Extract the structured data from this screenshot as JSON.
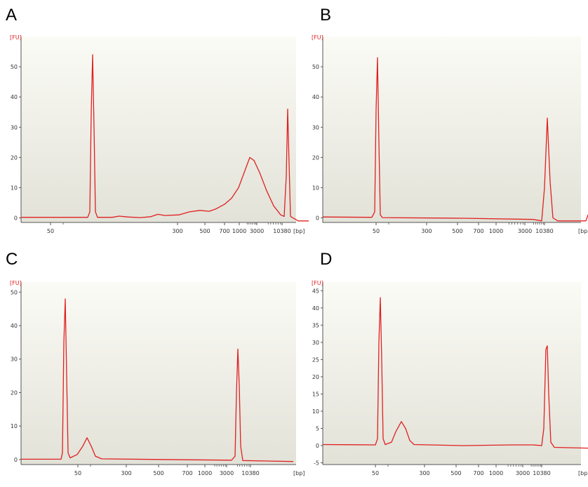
{
  "colors": {
    "trace": "#e02020",
    "plot_bg_top": "#fbfbf6",
    "plot_bg_bottom": "#e2e2d8",
    "axis": "#555555",
    "y_text": "#e02020",
    "x_text": "#333333"
  },
  "chart_data": [
    {
      "type": "line",
      "panel": "A",
      "ylabel": "[FU]",
      "xlabel": "[bp]",
      "yticks": [
        "0",
        "10",
        "20",
        "30",
        "40",
        "50"
      ],
      "ylim": [
        -1.5,
        60
      ],
      "xtick_labels": [
        "50",
        "300",
        "500",
        "700",
        "1000",
        "3000",
        "10380"
      ],
      "series": [
        {
          "values": [
            [
              0,
              0.2
            ],
            [
              95,
              0.2
            ],
            [
              98,
              2
            ],
            [
              100,
              35
            ],
            [
              102,
              54
            ],
            [
              104,
              30
            ],
            [
              106,
              2
            ],
            [
              109,
              0.2
            ],
            [
              130,
              0.2
            ],
            [
              140,
              0.6
            ],
            [
              152,
              0.3
            ],
            [
              170,
              0.1
            ],
            [
              185,
              0.4
            ],
            [
              195,
              1.2
            ],
            [
              205,
              0.8
            ],
            [
              225,
              1.0
            ],
            [
              240,
              2.0
            ],
            [
              255,
              2.5
            ],
            [
              268,
              2.2
            ],
            [
              278,
              3.0
            ],
            [
              290,
              4.5
            ],
            [
              300,
              6.5
            ],
            [
              310,
              10
            ],
            [
              318,
              15
            ],
            [
              326,
              20
            ],
            [
              332,
              19
            ],
            [
              340,
              15
            ],
            [
              350,
              9
            ],
            [
              360,
              4
            ],
            [
              370,
              1
            ],
            [
              375,
              0.5
            ],
            [
              378,
              14
            ],
            [
              380,
              36
            ],
            [
              382,
              18
            ],
            [
              384,
              0.5
            ],
            [
              395,
              -1
            ],
            [
              410,
              -1
            ]
          ]
        }
      ]
    },
    {
      "type": "line",
      "panel": "B",
      "ylabel": "[FU]",
      "xlabel": "[bp]",
      "yticks": [
        "0",
        "10",
        "20",
        "30",
        "40",
        "50"
      ],
      "ylim": [
        -1.5,
        60
      ],
      "xtick_labels": [
        "50",
        "300",
        "500",
        "700",
        "1000",
        "3000",
        "10380"
      ],
      "series": [
        {
          "values": [
            [
              0,
              0.3
            ],
            [
              70,
              0.2
            ],
            [
              74,
              2
            ],
            [
              76,
              36
            ],
            [
              78,
              53
            ],
            [
              80,
              25
            ],
            [
              82,
              1
            ],
            [
              85,
              0.1
            ],
            [
              200,
              -0.1
            ],
            [
              300,
              -0.5
            ],
            [
              312,
              -1
            ],
            [
              316,
              10
            ],
            [
              320,
              33
            ],
            [
              324,
              12
            ],
            [
              328,
              0
            ],
            [
              335,
              -1
            ],
            [
              375,
              -1
            ],
            [
              378,
              1
            ],
            [
              381,
              -1
            ],
            [
              385,
              -1
            ]
          ]
        }
      ]
    },
    {
      "type": "line",
      "panel": "C",
      "ylabel": "[FU]",
      "xlabel": "[bp]",
      "yticks": [
        "0",
        "10",
        "20",
        "30",
        "40",
        "50"
      ],
      "ylim": [
        -1.5,
        53
      ],
      "xtick_labels": [
        "50",
        "300",
        "500",
        "700",
        "1000",
        "3000",
        "10380"
      ],
      "series": [
        {
          "values": [
            [
              0,
              0.1
            ],
            [
              57,
              0.1
            ],
            [
              59,
              2
            ],
            [
              61,
              35
            ],
            [
              63,
              48
            ],
            [
              65,
              25
            ],
            [
              67,
              2
            ],
            [
              70,
              0.5
            ],
            [
              80,
              1.5
            ],
            [
              88,
              4
            ],
            [
              94,
              6.5
            ],
            [
              100,
              4
            ],
            [
              106,
              1
            ],
            [
              115,
              0.2
            ],
            [
              200,
              0
            ],
            [
              300,
              -0.2
            ],
            [
              305,
              1
            ],
            [
              307,
              20
            ],
            [
              309,
              33
            ],
            [
              311,
              22
            ],
            [
              313,
              4
            ],
            [
              316,
              -0.3
            ],
            [
              388,
              -0.6
            ]
          ]
        }
      ]
    },
    {
      "type": "line",
      "panel": "D",
      "ylabel": "[FU]",
      "xlabel": "[bp]",
      "yticks": [
        "-5",
        "0",
        "5",
        "10",
        "15",
        "20",
        "25",
        "30",
        "35",
        "40",
        "45"
      ],
      "ylim": [
        -5.5,
        47.5
      ],
      "xtick_labels": [
        "50",
        "300",
        "500",
        "700",
        "1000",
        "3000",
        "10380"
      ],
      "series": [
        {
          "values": [
            [
              0,
              0.3
            ],
            [
              75,
              0.2
            ],
            [
              78,
              2
            ],
            [
              80,
              30
            ],
            [
              82,
              43
            ],
            [
              84,
              25
            ],
            [
              86,
              2
            ],
            [
              89,
              0.3
            ],
            [
              98,
              1
            ],
            [
              104,
              4
            ],
            [
              112,
              7
            ],
            [
              118,
              5
            ],
            [
              124,
              1.5
            ],
            [
              130,
              0.3
            ],
            [
              200,
              0
            ],
            [
              270,
              0.2
            ],
            [
              300,
              0.2
            ],
            [
              312,
              0
            ],
            [
              315,
              5
            ],
            [
              318,
              28
            ],
            [
              320,
              29
            ],
            [
              322,
              15
            ],
            [
              325,
              1
            ],
            [
              330,
              -0.5
            ],
            [
              388,
              -0.8
            ]
          ]
        }
      ]
    }
  ]
}
